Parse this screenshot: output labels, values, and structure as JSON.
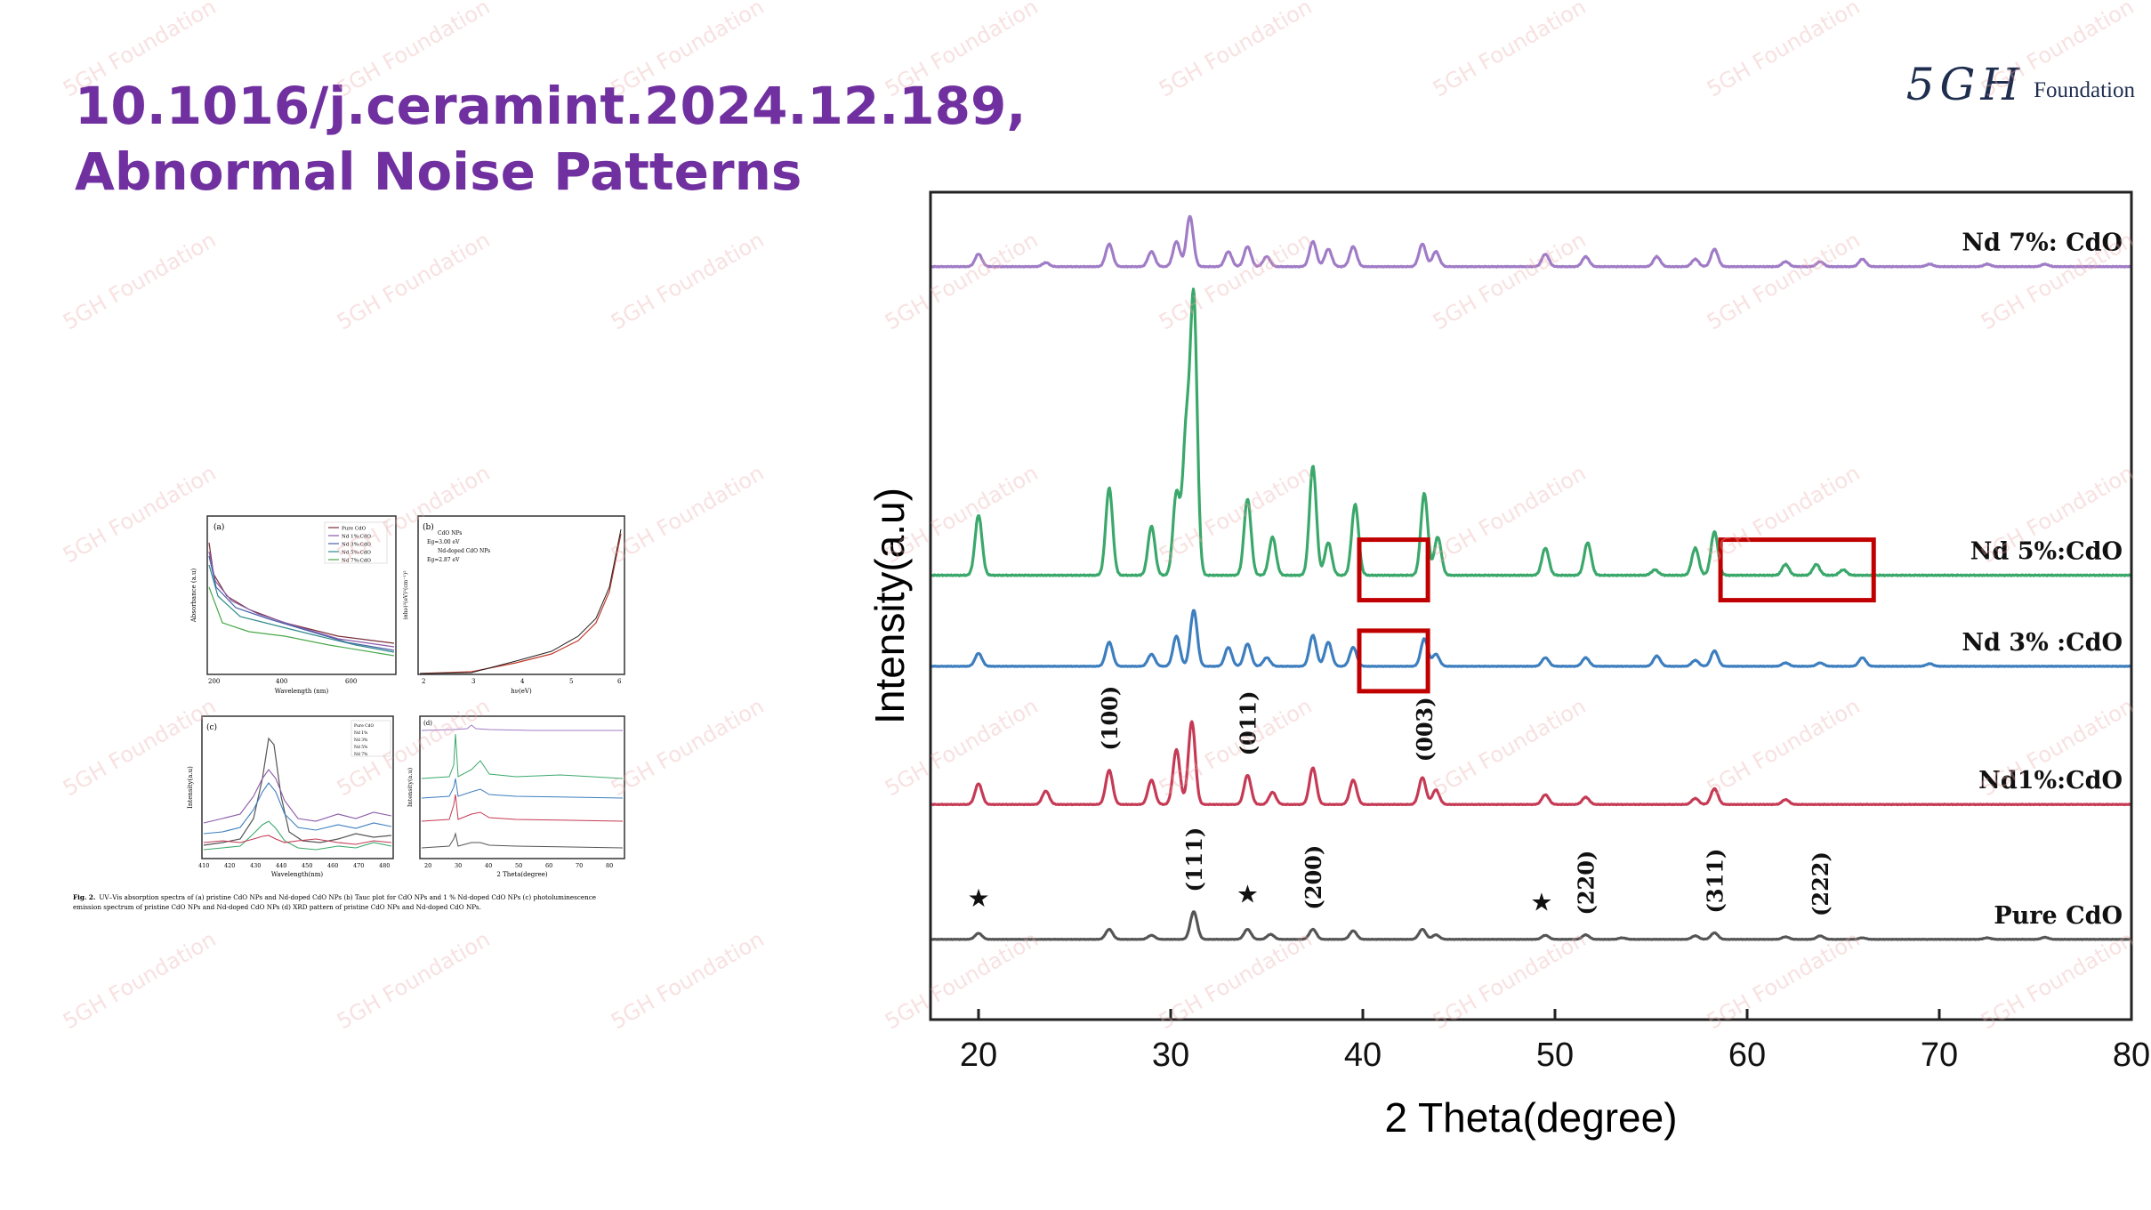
{
  "slide": {
    "title_line1": "10.1016/j.ceramint.2024.12.189,",
    "title_line2": "Abnormal Noise Patterns",
    "logo": {
      "mark": "5GH",
      "text": "Foundation"
    },
    "watermark": "5GH Foundation",
    "colors": {
      "title": "#7030a0",
      "logo": "#1f2d4f",
      "highlight_box": "#c00000",
      "watermark": "#e8a0a0"
    }
  },
  "thumbnail_figure": {
    "caption_label": "Fig. 2.",
    "caption_line1": "UV–Vis absorption spectra of (a) pristine CdO NPs and Nd-doped CdO NPs (b) Tauc plot for CdO NPs and 1 % Nd-doped CdO NPs (c) photoluminescence",
    "caption_line2": "emission spectrum of pristine CdO NPs and Nd-doped CdO NPs (d) XRD pattern of pristine CdO NPs and Nd-doped CdO NPs.",
    "panel_a": {
      "label": "(a)",
      "xlabel": "Wavelength (nm)",
      "ylabel": "Absorbance (a.u)",
      "ticks": [
        "200",
        "400",
        "600"
      ],
      "legend": [
        "Pure CdO",
        "Nd 1%:CdO",
        "Nd 3%:CdO",
        "Nd 5%:CdO",
        "Nd 7%:CdO"
      ]
    },
    "panel_b": {
      "label": "(b)",
      "xlabel": "hν(eV)",
      "ylabel": "(αhν)²(eV)²(cm⁻¹)²",
      "ticks": [
        "2",
        "3",
        "4",
        "5",
        "6"
      ],
      "legend": [
        "CdO NPs",
        "Nd-doped CdO NPs"
      ],
      "eg1": "Eg=3.00 eV",
      "eg2": "Eg=2.87 eV"
    },
    "panel_c": {
      "label": "(c)",
      "xlabel": "Wavelength(nm)",
      "ylabel": "Intensity(a.u)",
      "ticks": [
        "410",
        "420",
        "430",
        "440",
        "450",
        "460",
        "470",
        "480"
      ],
      "legend": [
        "Pure CdO",
        "Nd 1%",
        "Nd 3%",
        "Nd 5%",
        "Nd 7%"
      ]
    },
    "panel_d": {
      "label": "(d)",
      "xlabel": "2 Theta(degree)",
      "ylabel": "Intensity(a.u)",
      "ticks": [
        "20",
        "30",
        "40",
        "50",
        "60",
        "70",
        "80"
      ]
    }
  },
  "chart_data": {
    "type": "line",
    "xlabel": "2 Theta(degree)",
    "ylabel": "Intensity(a.u)",
    "xlim": [
      17.5,
      80
    ],
    "x_ticks": [
      20,
      30,
      40,
      50,
      60,
      70,
      80
    ],
    "y_ticks": [],
    "grid": false,
    "legend": "none",
    "series": [
      {
        "name": "Nd 7%: CdO",
        "color": "#a07cc6",
        "baseline": 0.09,
        "scale": 0.07,
        "noise": 0.2,
        "peaks": [
          [
            20,
            0.25
          ],
          [
            23.5,
            0.08
          ],
          [
            26.8,
            0.45
          ],
          [
            29,
            0.3
          ],
          [
            30.3,
            0.5
          ],
          [
            31,
            1.0
          ],
          [
            33,
            0.3
          ],
          [
            34,
            0.4
          ],
          [
            35,
            0.2
          ],
          [
            37.4,
            0.5
          ],
          [
            38.2,
            0.35
          ],
          [
            39.5,
            0.4
          ],
          [
            43.1,
            0.45
          ],
          [
            43.8,
            0.3
          ],
          [
            49.5,
            0.25
          ],
          [
            51.6,
            0.2
          ],
          [
            55.3,
            0.2
          ],
          [
            57.3,
            0.15
          ],
          [
            58.3,
            0.35
          ],
          [
            62,
            0.1
          ],
          [
            63.8,
            0.1
          ],
          [
            66,
            0.15
          ],
          [
            69.5,
            0.05
          ],
          [
            72.5,
            0.05
          ],
          [
            75.5,
            0.05
          ]
        ]
      },
      {
        "name": "Nd 5%:CdO",
        "color": "#3ba86b",
        "baseline": 0.463,
        "scale": 0.38,
        "noise": 0.05,
        "peaks": [
          [
            20,
            0.22
          ],
          [
            26.8,
            0.32
          ],
          [
            29,
            0.18
          ],
          [
            30.3,
            0.3
          ],
          [
            30.8,
            0.5
          ],
          [
            31.2,
            1.0
          ],
          [
            34,
            0.28
          ],
          [
            35.3,
            0.14
          ],
          [
            37.4,
            0.4
          ],
          [
            38.2,
            0.12
          ],
          [
            39.6,
            0.26
          ],
          [
            43.2,
            0.3
          ],
          [
            43.9,
            0.14
          ],
          [
            49.5,
            0.1
          ],
          [
            51.7,
            0.12
          ],
          [
            55.2,
            0.02
          ],
          [
            57.3,
            0.1
          ],
          [
            58.3,
            0.16
          ],
          [
            62,
            0.04
          ],
          [
            63.6,
            0.04
          ],
          [
            65,
            0.02
          ]
        ]
      },
      {
        "name": "Nd 3% :CdO",
        "color": "#3d7ebf",
        "baseline": 0.573,
        "scale": 0.12,
        "noise": 0.08,
        "peaks": [
          [
            20,
            0.15
          ],
          [
            26.8,
            0.28
          ],
          [
            29,
            0.14
          ],
          [
            30.3,
            0.35
          ],
          [
            31.2,
            0.65
          ],
          [
            33,
            0.22
          ],
          [
            34,
            0.26
          ],
          [
            35,
            0.1
          ],
          [
            37.4,
            0.36
          ],
          [
            38.2,
            0.28
          ],
          [
            39.5,
            0.22
          ],
          [
            43.2,
            0.32
          ],
          [
            43.8,
            0.14
          ],
          [
            49.5,
            0.1
          ],
          [
            51.6,
            0.1
          ],
          [
            55.3,
            0.12
          ],
          [
            57.3,
            0.07
          ],
          [
            58.3,
            0.18
          ],
          [
            62,
            0.04
          ],
          [
            63.8,
            0.04
          ],
          [
            66,
            0.1
          ],
          [
            69.5,
            0.03
          ]
        ]
      },
      {
        "name": "Nd1%:CdO",
        "color": "#c53a55",
        "baseline": 0.74,
        "scale": 0.17,
        "noise": 0.06,
        "peaks": [
          [
            20,
            0.17
          ],
          [
            23.5,
            0.11
          ],
          [
            26.8,
            0.28
          ],
          [
            29,
            0.2
          ],
          [
            30.3,
            0.45
          ],
          [
            31.1,
            0.68
          ],
          [
            34,
            0.24
          ],
          [
            35.3,
            0.1
          ],
          [
            37.4,
            0.3
          ],
          [
            39.5,
            0.2
          ],
          [
            43.1,
            0.22
          ],
          [
            43.8,
            0.12
          ],
          [
            49.5,
            0.08
          ],
          [
            51.6,
            0.06
          ],
          [
            57.3,
            0.05
          ],
          [
            58.3,
            0.13
          ],
          [
            62,
            0.04
          ]
        ]
      },
      {
        "name": "Pure CdO",
        "color": "#555555",
        "baseline": 0.903,
        "scale": 0.07,
        "noise": 0.1,
        "peaks": [
          [
            20,
            0.12
          ],
          [
            26.8,
            0.2
          ],
          [
            29,
            0.08
          ],
          [
            31.2,
            0.55
          ],
          [
            34,
            0.2
          ],
          [
            35.2,
            0.1
          ],
          [
            37.4,
            0.2
          ],
          [
            39.5,
            0.17
          ],
          [
            43.1,
            0.2
          ],
          [
            43.8,
            0.09
          ],
          [
            49.5,
            0.08
          ],
          [
            51.6,
            0.09
          ],
          [
            53.5,
            0.03
          ],
          [
            57.3,
            0.07
          ],
          [
            58.3,
            0.13
          ],
          [
            62,
            0.05
          ],
          [
            63.8,
            0.07
          ],
          [
            66,
            0.03
          ],
          [
            72.5,
            0.03
          ],
          [
            75.5,
            0.04
          ]
        ]
      }
    ],
    "annotations": [
      {
        "text": "(100)",
        "x": 26.8,
        "series": "Nd1%:CdO",
        "rotated": true
      },
      {
        "text": "(011)",
        "x": 34.0,
        "series": "Nd1%:CdO",
        "rotated": true
      },
      {
        "text": "(003)",
        "x": 43.2,
        "series": "Nd1%:CdO",
        "rotated": true
      },
      {
        "text": "(111)",
        "x": 31.2,
        "series": "Pure CdO",
        "rotated": true
      },
      {
        "text": "(200)",
        "x": 37.4,
        "series": "Pure CdO",
        "rotated": true
      },
      {
        "text": "(220)",
        "x": 51.6,
        "series": "Pure CdO",
        "rotated": true
      },
      {
        "text": "(311)",
        "x": 58.3,
        "series": "Pure CdO",
        "rotated": true
      },
      {
        "text": "(222)",
        "x": 63.8,
        "series": "Pure CdO",
        "rotated": true
      },
      {
        "text": "★",
        "x": 20.0,
        "series": "Pure CdO",
        "rotated": false
      },
      {
        "text": "★",
        "x": 34.0,
        "series": "Pure CdO",
        "rotated": false
      },
      {
        "text": "★",
        "x": 49.3,
        "series": "Pure CdO",
        "rotated": false
      }
    ],
    "highlight_regions": [
      {
        "series": "Nd 5%:CdO",
        "x_range": [
          40,
          43.2
        ]
      },
      {
        "series": "Nd 3% :CdO",
        "x_range": [
          40,
          43.2
        ]
      },
      {
        "series": "Nd 5%:CdO",
        "x_range": [
          58.8,
          66.4
        ]
      }
    ]
  }
}
